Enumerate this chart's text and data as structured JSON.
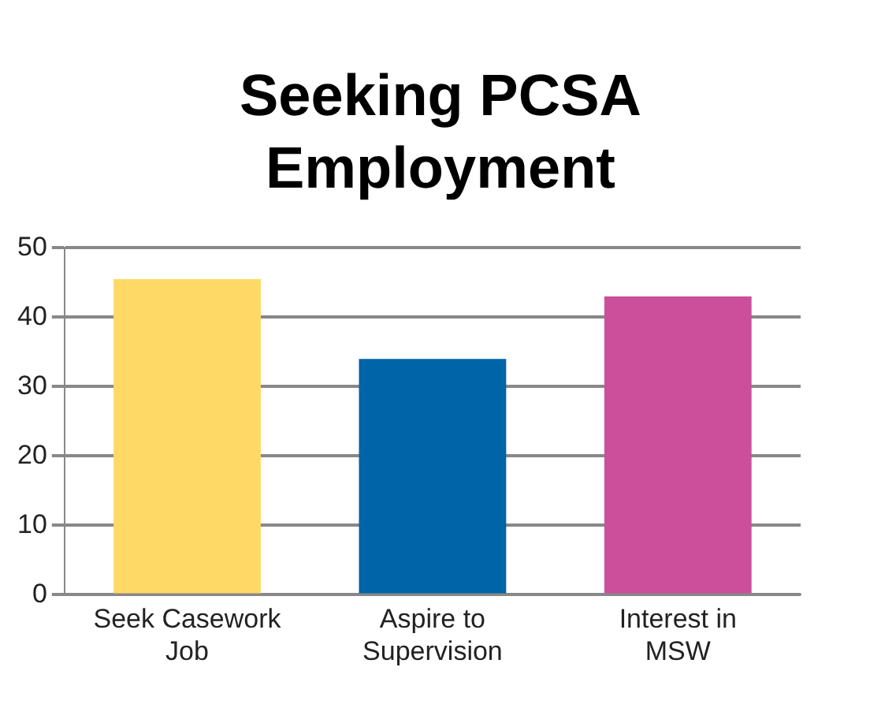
{
  "chart_data": {
    "type": "bar",
    "title": "Seeking PCSA Employment",
    "categories": [
      "Seek Casework Job",
      "Aspire to Supervision",
      "Interest in MSW"
    ],
    "values": [
      45.5,
      34,
      43
    ],
    "colors": [
      "#ffd966",
      "#0064a8",
      "#cc4f9c"
    ],
    "ylim": [
      0,
      50
    ],
    "yticks": [
      0,
      10,
      20,
      30,
      40,
      50
    ],
    "grid": "y",
    "legend": false
  }
}
